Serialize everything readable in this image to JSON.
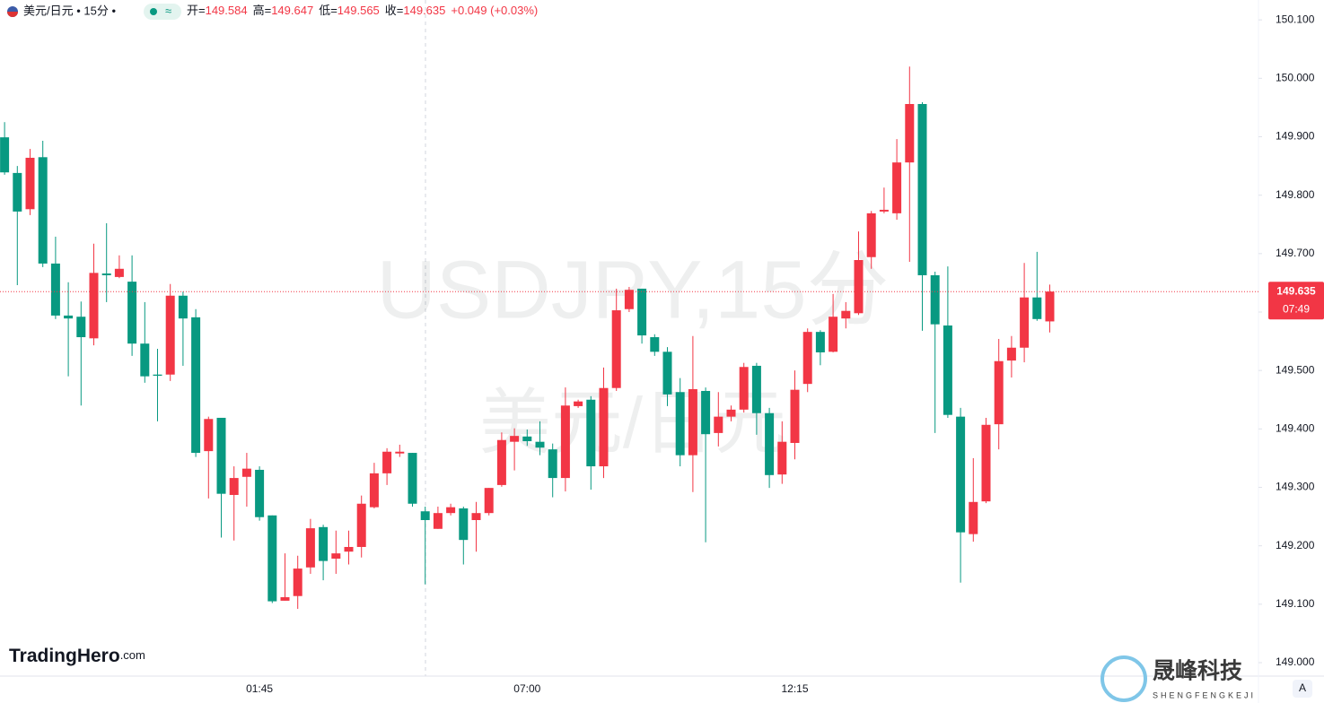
{
  "header": {
    "symbol": "美元/日元 • 15分 •",
    "indicator": "≈",
    "open_label": "开=",
    "high_label": "高=",
    "low_label": "低=",
    "close_label": "收=",
    "change": "+0.049 (+0.03%)"
  },
  "watermark": {
    "line1": "USDJPY,15分",
    "line2": "美元/日元"
  },
  "countdown": "07:49",
  "logo": {
    "brand": "TradingHero",
    "brand_suffix": ".com",
    "company": "晟峰科技",
    "company_pinyin": "SHENGFENGKEJI",
    "auto": "A"
  },
  "chart_data": {
    "type": "candlestick",
    "up_color": "#f23645",
    "down_color": "#089981",
    "grid": false,
    "ylim": [
      148.977,
      150.134
    ],
    "yticks": [
      {
        "value": 150.1,
        "label": "150.100"
      },
      {
        "value": 150.0,
        "label": "150.000"
      },
      {
        "value": 149.9,
        "label": "149.900"
      },
      {
        "value": 149.8,
        "label": "149.800"
      },
      {
        "value": 149.7,
        "label": "149.700"
      },
      {
        "value": 149.6,
        "label": "149.600"
      },
      {
        "value": 149.5,
        "label": "149.500"
      },
      {
        "value": 149.4,
        "label": "149.400"
      },
      {
        "value": 149.3,
        "label": "149.300"
      },
      {
        "value": 149.2,
        "label": "149.200"
      },
      {
        "value": 149.1,
        "label": "149.100"
      },
      {
        "value": 149.0,
        "label": "149.000"
      }
    ],
    "categories": [
      null,
      null,
      null,
      null,
      null,
      null,
      null,
      null,
      null,
      null,
      null,
      null,
      null,
      null,
      null,
      null,
      null,
      null,
      null,
      null,
      "01:45",
      null,
      null,
      null,
      null,
      null,
      null,
      null,
      null,
      null,
      null,
      null,
      null,
      null,
      null,
      null,
      null,
      null,
      null,
      null,
      null,
      "07:00",
      null,
      null,
      null,
      null,
      null,
      null,
      null,
      null,
      null,
      null,
      null,
      null,
      null,
      null,
      null,
      null,
      null,
      null,
      null,
      null,
      "12:15",
      null,
      null,
      null,
      null,
      null,
      null,
      null,
      null,
      null,
      null,
      null,
      null,
      null,
      null,
      null,
      null,
      null,
      null,
      null,
      null
    ],
    "open": [
      149.899,
      149.838,
      149.776,
      149.865,
      149.683,
      149.594,
      149.592,
      149.555,
      149.666,
      149.66,
      149.652,
      149.546,
      149.493,
      149.493,
      149.628,
      149.591,
      149.362,
      149.419,
      149.287,
      149.318,
      149.33,
      149.252,
      149.106,
      149.114,
      149.163,
      149.232,
      149.178,
      149.19,
      149.198,
      149.266,
      149.324,
      149.358,
      149.359,
      149.259,
      149.229,
      149.256,
      149.264,
      149.244,
      149.256,
      149.304,
      149.378,
      149.387,
      149.378,
      149.365,
      149.316,
      149.439,
      149.45,
      149.336,
      149.47,
      149.605,
      149.64,
      149.557,
      149.532,
      149.463,
      149.355,
      149.465,
      149.393,
      149.421,
      149.433,
      149.508,
      149.427,
      149.322,
      149.376,
      149.477,
      149.566,
      149.532,
      149.589,
      149.598,
      149.694,
      149.772,
      149.769,
      149.856,
      149.956,
      149.663,
      149.577,
      149.421,
      149.22,
      149.276,
      149.408,
      149.517,
      149.539,
      149.625,
      149.584
    ],
    "high": [
      149.925,
      149.85,
      149.879,
      149.893,
      149.729,
      149.651,
      149.618,
      149.717,
      149.752,
      149.697,
      149.697,
      149.617,
      149.537,
      149.648,
      149.635,
      149.605,
      149.421,
      149.419,
      149.336,
      149.359,
      149.336,
      149.252,
      149.187,
      149.183,
      149.246,
      149.236,
      149.226,
      149.226,
      149.286,
      149.342,
      149.367,
      149.373,
      149.359,
      149.267,
      149.267,
      149.272,
      149.267,
      149.275,
      149.299,
      149.394,
      149.401,
      149.399,
      149.413,
      149.375,
      149.471,
      149.45,
      149.456,
      149.505,
      149.64,
      149.643,
      149.64,
      149.562,
      149.54,
      149.487,
      149.559,
      149.471,
      149.463,
      149.44,
      149.513,
      149.513,
      149.436,
      149.413,
      149.5,
      149.572,
      149.569,
      149.631,
      149.617,
      149.738,
      149.773,
      149.813,
      149.896,
      150.02,
      149.959,
      149.669,
      149.678,
      149.436,
      149.35,
      149.419,
      149.554,
      149.559,
      149.684,
      149.703,
      149.647
    ],
    "low": [
      149.835,
      149.646,
      149.766,
      149.677,
      149.588,
      149.49,
      149.44,
      149.543,
      149.617,
      149.658,
      149.525,
      149.479,
      149.413,
      149.482,
      149.508,
      149.352,
      149.281,
      149.214,
      149.209,
      149.267,
      149.243,
      149.102,
      149.106,
      149.092,
      149.152,
      149.141,
      149.152,
      149.168,
      149.18,
      149.264,
      149.304,
      149.352,
      149.267,
      149.134,
      149.229,
      149.252,
      149.168,
      149.19,
      149.252,
      149.301,
      149.329,
      149.371,
      149.355,
      149.283,
      149.293,
      149.436,
      149.296,
      149.316,
      149.465,
      149.6,
      149.546,
      149.525,
      149.439,
      149.336,
      149.292,
      149.206,
      149.37,
      149.413,
      149.428,
      149.39,
      149.299,
      149.306,
      149.348,
      149.463,
      149.509,
      149.531,
      149.572,
      149.595,
      149.674,
      149.769,
      149.758,
      149.686,
      149.568,
      149.393,
      149.419,
      149.137,
      149.207,
      149.273,
      149.365,
      149.488,
      149.514,
      149.585,
      149.565
    ],
    "close": [
      149.839,
      149.772,
      149.864,
      149.683,
      149.594,
      149.589,
      149.557,
      149.667,
      149.663,
      149.674,
      149.546,
      149.49,
      149.491,
      149.628,
      149.589,
      149.359,
      149.417,
      149.289,
      149.316,
      149.332,
      149.249,
      149.105,
      149.112,
      149.161,
      149.23,
      149.174,
      149.187,
      149.198,
      149.272,
      149.324,
      149.361,
      149.361,
      149.272,
      149.244,
      149.256,
      149.266,
      149.21,
      149.256,
      149.299,
      149.381,
      149.388,
      149.379,
      149.368,
      149.316,
      149.44,
      149.447,
      149.336,
      149.47,
      149.603,
      149.638,
      149.56,
      149.532,
      149.459,
      149.355,
      149.468,
      149.391,
      149.421,
      149.433,
      149.506,
      149.427,
      149.321,
      149.378,
      149.467,
      149.566,
      149.531,
      149.592,
      149.602,
      149.689,
      149.769,
      149.775,
      149.856,
      149.956,
      149.663,
      149.579,
      149.424,
      149.223,
      149.275,
      149.407,
      149.516,
      149.539,
      149.625,
      149.588,
      149.635
    ]
  }
}
